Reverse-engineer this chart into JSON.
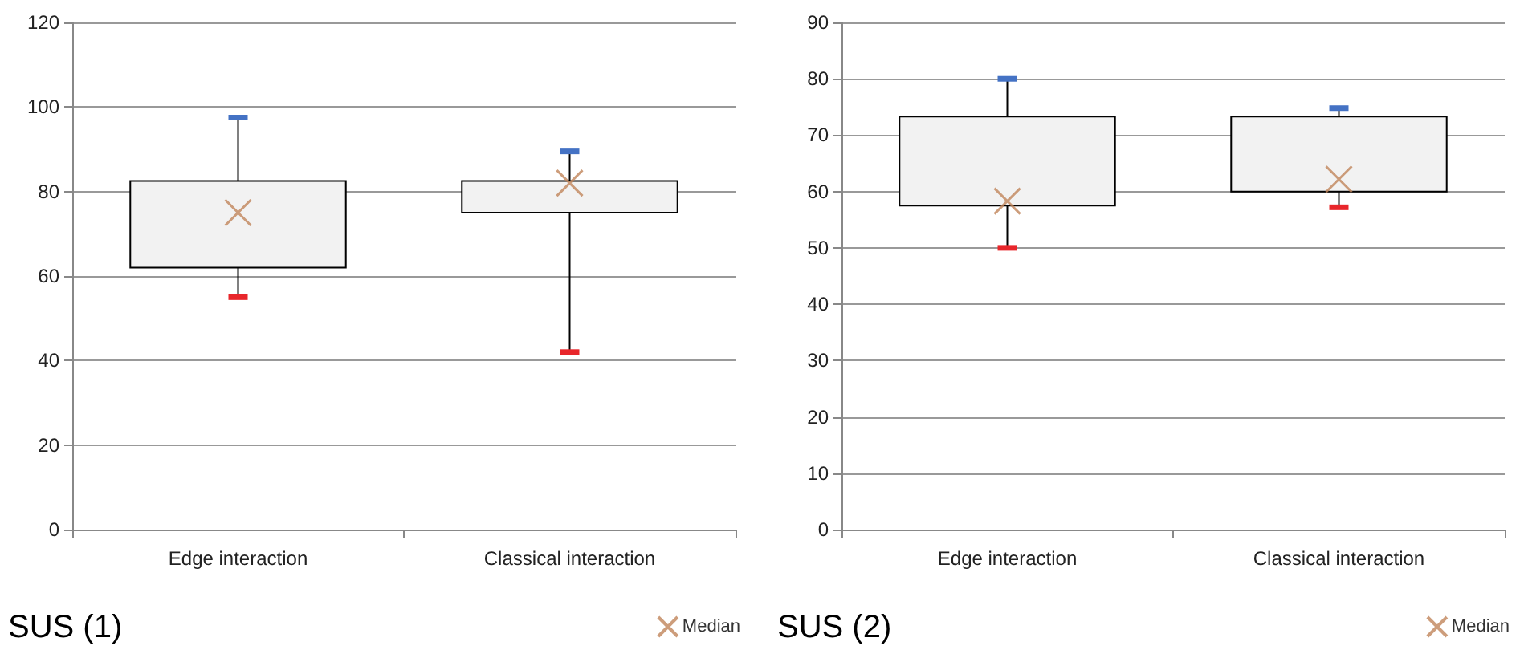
{
  "chart_data": [
    {
      "type": "box",
      "title": "SUS (1)",
      "categories": [
        "Edge interaction",
        "Classical interaction"
      ],
      "ylim": [
        0,
        120
      ],
      "yticks": [
        0,
        20,
        40,
        60,
        80,
        100,
        120
      ],
      "grid": "y",
      "legend": "bottom right",
      "marker": "cross",
      "series": [
        {
          "color": "#f2f2f2",
          "boxes": [
            {
              "low": 55,
              "q1": 62,
              "q3": 82.5,
              "high": 97.5
            },
            {
              "low": 42,
              "q1": 75,
              "q3": 82.5,
              "high": 89.5
            }
          ]
        },
        {
          "type": "scatter",
          "name": "Median",
          "color": "#c0855a",
          "x": [
            "Edge interaction",
            "Classical interaction"
          ],
          "values": [
            75,
            82
          ]
        }
      ]
    },
    {
      "type": "box",
      "title": "SUS (2)",
      "categories": [
        "Edge interaction",
        "Classical interaction"
      ],
      "ylim": [
        0,
        90
      ],
      "yticks": [
        0,
        10,
        20,
        30,
        40,
        50,
        60,
        70,
        80,
        90
      ],
      "grid": "y",
      "legend": "bottom right",
      "marker": "cross",
      "series": [
        {
          "color": "#f2f2f2",
          "boxes": [
            {
              "low": 50,
              "q1": 57.5,
              "q3": 73.3,
              "high": 80
            },
            {
              "low": 57.2,
              "q1": 60,
              "q3": 73.3,
              "high": 74.8
            }
          ]
        },
        {
          "type": "scatter",
          "name": "Median",
          "color": "#c0855a",
          "x": [
            "Edge interaction",
            "Classical interaction"
          ],
          "values": [
            58.3,
            62.2
          ]
        }
      ]
    }
  ]
}
